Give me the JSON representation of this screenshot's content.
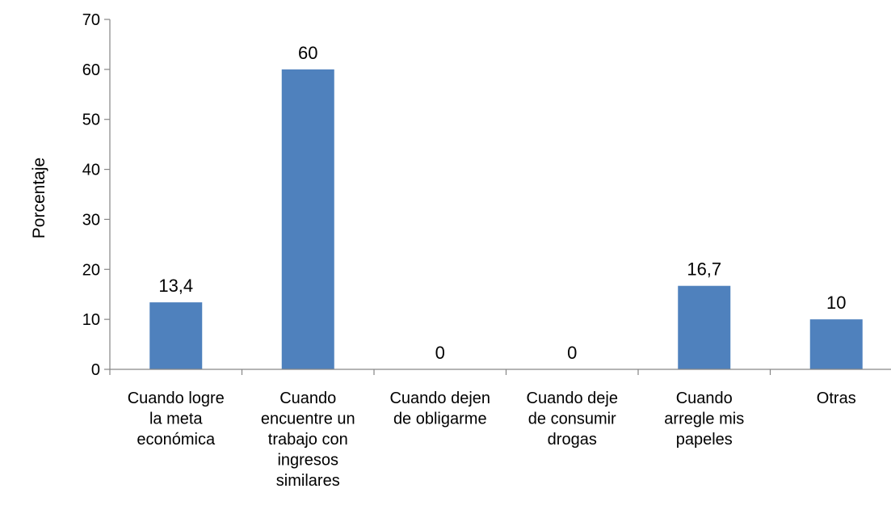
{
  "chart_data": {
    "type": "bar",
    "title": "",
    "xlabel": "",
    "ylabel": "Porcentaje",
    "ylim": [
      0,
      70
    ],
    "yticks": [
      0,
      10,
      20,
      30,
      40,
      50,
      60,
      70
    ],
    "grid": false,
    "legend": "none",
    "bar_color": "#4F81BD",
    "categories": [
      [
        "Cuando logre",
        "la meta",
        "económica"
      ],
      [
        "Cuando",
        "encuentre un",
        "trabajo con",
        "ingresos",
        "similares"
      ],
      [
        "Cuando dejen",
        "de obligarme"
      ],
      [
        "Cuando deje",
        "de consumir",
        "drogas"
      ],
      [
        "Cuando",
        "arregle mis",
        "papeles"
      ],
      [
        "Otras"
      ]
    ],
    "values": [
      13.4,
      60,
      0,
      0,
      16.7,
      10
    ],
    "data_labels": [
      "13,4",
      "60",
      "0",
      "0",
      "16,7",
      "10"
    ]
  }
}
